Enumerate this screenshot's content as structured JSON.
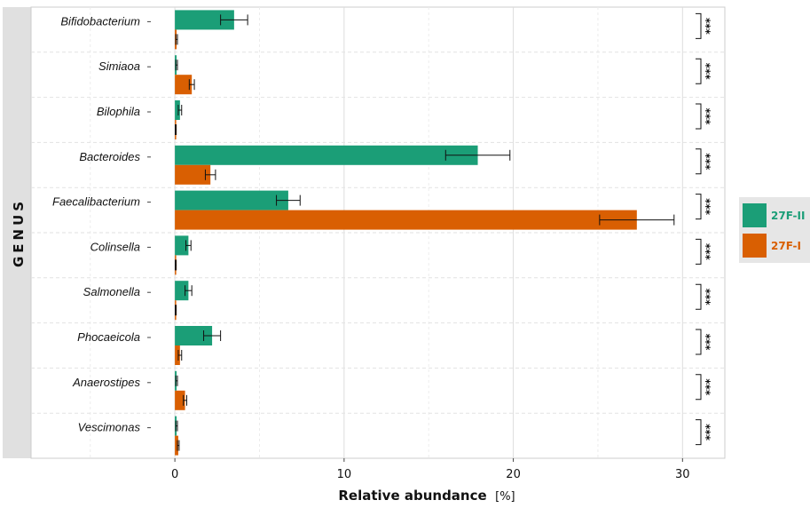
{
  "chart_data": {
    "type": "bar",
    "orientation": "horizontal",
    "facet_label": "GENUS",
    "xlabel": "Relative abundance",
    "xlabel_unit": "[%]",
    "xlim": [
      -8.5,
      32.5
    ],
    "xticks": [
      0,
      10,
      20,
      30
    ],
    "grid": true,
    "legend_position": "right",
    "categories": [
      "Bifidobacterium",
      "Simiaoa",
      "Bilophila",
      "Bacteroides",
      "Faecalibacterium",
      "Colinsella",
      "Salmonella",
      "Phocaeicola",
      "Anaerostipes",
      "Vescimonas"
    ],
    "series": [
      {
        "name": "27F-II",
        "color": "#1b9e77",
        "values": [
          3.5,
          0.1,
          0.3,
          17.9,
          6.7,
          0.8,
          0.8,
          2.2,
          0.1,
          0.1
        ],
        "errors": [
          0.8,
          0.05,
          0.1,
          1.9,
          0.7,
          0.15,
          0.2,
          0.5,
          0.05,
          0.05
        ]
      },
      {
        "name": "27F-I",
        "color": "#d95f02",
        "values": [
          0.1,
          1.0,
          0.05,
          2.1,
          27.3,
          0.05,
          0.05,
          0.3,
          0.6,
          0.2
        ],
        "errors": [
          0.05,
          0.15,
          0.03,
          0.3,
          2.2,
          0.03,
          0.03,
          0.1,
          0.1,
          0.05
        ]
      }
    ],
    "significance": [
      "***",
      "***",
      "***",
      "***",
      "***",
      "***",
      "***",
      "***",
      "***",
      "***"
    ]
  }
}
